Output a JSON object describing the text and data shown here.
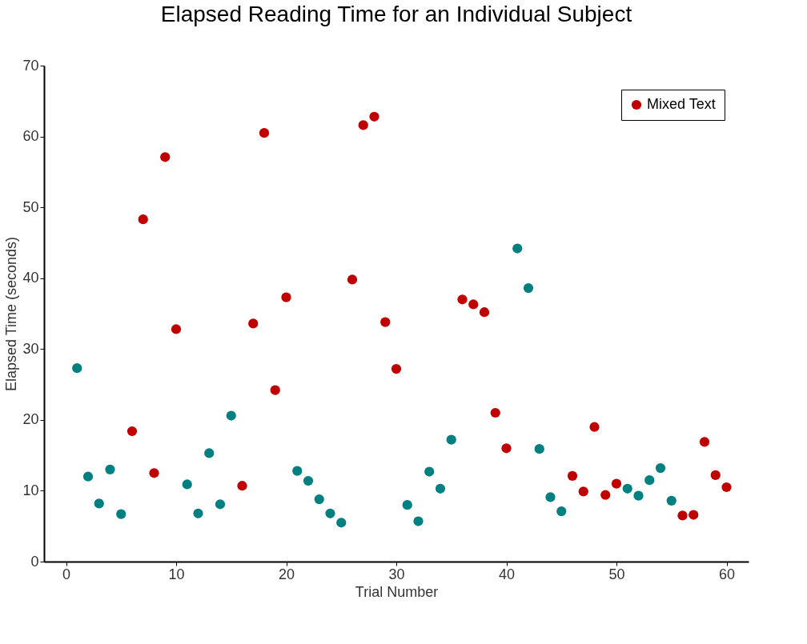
{
  "chart_data": {
    "type": "scatter",
    "title": "Elapsed Reading Time for an Individual Subject",
    "xlabel": "Trial Number",
    "ylabel": "Elapsed Time (seconds)",
    "xlim": [
      -2,
      62
    ],
    "xticks": [
      0,
      10,
      20,
      30,
      40,
      50,
      60
    ],
    "ylim": [
      0,
      70
    ],
    "yticks": [
      0,
      10,
      20,
      30,
      40,
      50,
      60,
      70
    ],
    "grid": false,
    "legend": "top right",
    "marker": "circle",
    "series": [
      {
        "color": "#008080",
        "x": [
          1,
          2,
          3,
          4,
          5,
          11,
          12,
          13,
          14,
          15,
          21,
          22,
          23,
          24,
          25,
          31,
          32,
          33,
          34,
          35,
          41,
          42,
          43,
          44,
          45,
          51,
          52,
          53,
          54,
          55
        ],
        "values": [
          27.3,
          12,
          8.2,
          13,
          6.7,
          10.9,
          6.8,
          15.3,
          8.1,
          20.6,
          12.8,
          11.4,
          8.8,
          6.8,
          5.5,
          8,
          5.7,
          12.7,
          10.3,
          17.2,
          44.2,
          38.6,
          15.9,
          9.1,
          7.1,
          10.3,
          9.3,
          11.5,
          13.2,
          8.6
        ]
      },
      {
        "name": "Mixed Text",
        "color": "#c00000",
        "x": [
          6,
          7,
          8,
          9,
          10,
          16,
          17,
          18,
          19,
          20,
          26,
          27,
          28,
          29,
          30,
          36,
          37,
          38,
          39,
          40,
          46,
          47,
          48,
          49,
          50,
          56,
          57,
          58,
          59,
          60
        ],
        "values": [
          18.4,
          48.3,
          12.5,
          57.1,
          32.8,
          10.7,
          33.6,
          60.5,
          24.2,
          37.3,
          39.8,
          61.6,
          62.8,
          33.8,
          27.2,
          37,
          36.3,
          35.2,
          21,
          16,
          12.1,
          9.9,
          19,
          9.4,
          11,
          6.5,
          6.6,
          16.9,
          12.2,
          10.5
        ]
      }
    ]
  }
}
